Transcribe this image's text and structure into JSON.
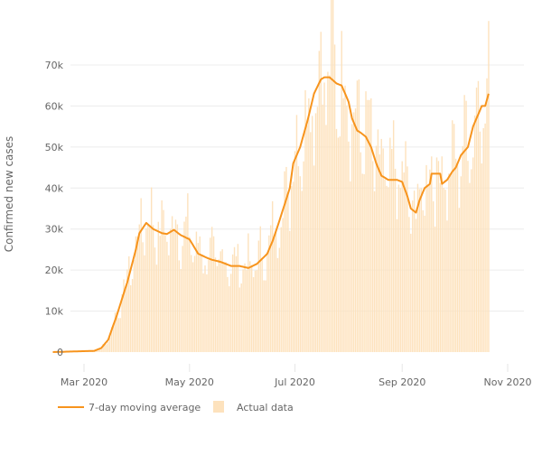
{
  "chart_data": {
    "type": "bar+line",
    "title": "",
    "xlabel": "",
    "ylabel": "Confirmed new cases",
    "ylim": [
      0,
      75000
    ],
    "yticks": [
      0,
      10000,
      20000,
      30000,
      40000,
      50000,
      60000,
      70000
    ],
    "ytick_labels": [
      "0",
      "10k",
      "20k",
      "30k",
      "40k",
      "50k",
      "60k",
      "70k"
    ],
    "xticks": [
      "2020-03-01",
      "2020-05-01",
      "2020-07-01",
      "2020-09-01",
      "2020-11-01"
    ],
    "xtick_labels": [
      "Mar 2020",
      "May 2020",
      "Jul 2020",
      "Sep 2020",
      "Nov 2020"
    ],
    "xlim": [
      "2020-02-12",
      "2020-11-05"
    ],
    "grid": true,
    "legend_position": "bottom-left",
    "colors": {
      "line": "#f7941d",
      "bars": "#fde2bd",
      "grid": "#ececec"
    },
    "series": [
      {
        "name": "7-day moving average",
        "type": "line",
        "points": [
          [
            "2020-02-12",
            0
          ],
          [
            "2020-03-07",
            300
          ],
          [
            "2020-03-11",
            1000
          ],
          [
            "2020-03-15",
            3000
          ],
          [
            "2020-03-20",
            9000
          ],
          [
            "2020-03-26",
            17000
          ],
          [
            "2020-03-31",
            25000
          ],
          [
            "2020-04-02",
            29000
          ],
          [
            "2020-04-06",
            31500
          ],
          [
            "2020-04-10",
            30000
          ],
          [
            "2020-04-15",
            29000
          ],
          [
            "2020-04-18",
            28800
          ],
          [
            "2020-04-22",
            29800
          ],
          [
            "2020-04-26",
            28500
          ],
          [
            "2020-05-01",
            27500
          ],
          [
            "2020-05-06",
            24000
          ],
          [
            "2020-05-11",
            23000
          ],
          [
            "2020-05-14",
            22500
          ],
          [
            "2020-05-19",
            22000
          ],
          [
            "2020-05-25",
            21000
          ],
          [
            "2020-05-30",
            21000
          ],
          [
            "2020-06-04",
            20500
          ],
          [
            "2020-06-09",
            21500
          ],
          [
            "2020-06-15",
            24000
          ],
          [
            "2020-06-18",
            27000
          ],
          [
            "2020-06-22",
            32000
          ],
          [
            "2020-06-28",
            40000
          ],
          [
            "2020-06-30",
            46000
          ],
          [
            "2020-07-04",
            50000
          ],
          [
            "2020-07-08",
            56000
          ],
          [
            "2020-07-12",
            63000
          ],
          [
            "2020-07-16",
            66500
          ],
          [
            "2020-07-18",
            67000
          ],
          [
            "2020-07-21",
            67000
          ],
          [
            "2020-07-25",
            65500
          ],
          [
            "2020-07-28",
            65000
          ],
          [
            "2020-08-01",
            61000
          ],
          [
            "2020-08-03",
            57000
          ],
          [
            "2020-08-06",
            54000
          ],
          [
            "2020-08-08",
            53500
          ],
          [
            "2020-08-11",
            52500
          ],
          [
            "2020-08-14",
            50000
          ],
          [
            "2020-08-17",
            46000
          ],
          [
            "2020-08-20",
            43000
          ],
          [
            "2020-08-24",
            42000
          ],
          [
            "2020-08-29",
            42000
          ],
          [
            "2020-09-01",
            41500
          ],
          [
            "2020-09-04",
            38000
          ],
          [
            "2020-09-06",
            35000
          ],
          [
            "2020-09-09",
            34000
          ],
          [
            "2020-09-11",
            37000
          ],
          [
            "2020-09-14",
            40000
          ],
          [
            "2020-09-17",
            41000
          ],
          [
            "2020-09-18",
            43500
          ],
          [
            "2020-09-23",
            43500
          ],
          [
            "2020-09-24",
            41000
          ],
          [
            "2020-09-27",
            42000
          ],
          [
            "2020-09-30",
            44000
          ],
          [
            "2020-10-02",
            45000
          ],
          [
            "2020-10-05",
            48000
          ],
          [
            "2020-10-09",
            50000
          ],
          [
            "2020-10-12",
            55000
          ],
          [
            "2020-10-14",
            57000
          ],
          [
            "2020-10-17",
            60000
          ],
          [
            "2020-10-19",
            60000
          ],
          [
            "2020-10-21",
            63000
          ]
        ]
      },
      {
        "name": "Actual data",
        "type": "bar",
        "start": "2020-03-01",
        "end": "2020-10-21",
        "daily_variation": [
          0.82,
          0.92,
          1.04,
          1.1,
          1.18,
          1.06,
          0.88
        ]
      }
    ]
  }
}
